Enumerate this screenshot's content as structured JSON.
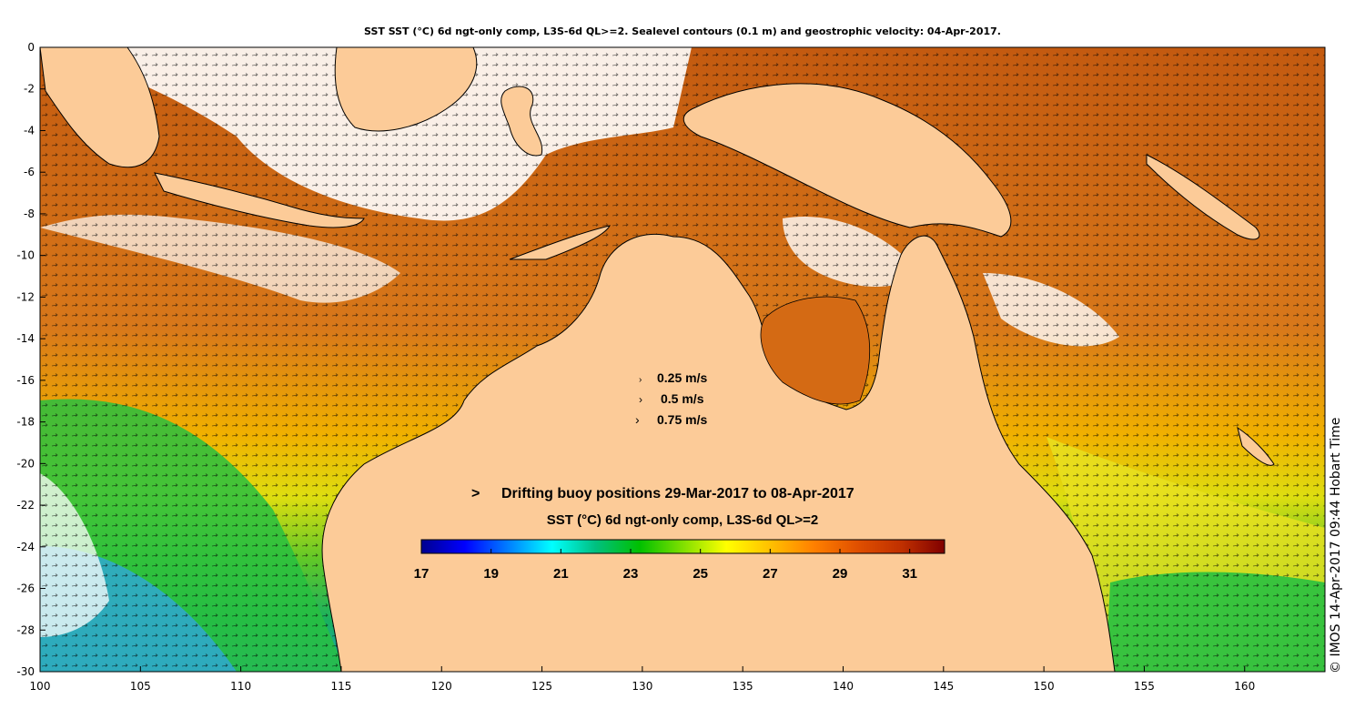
{
  "title": "SST SST (°C) 6d ngt-only comp, L3S-6d QL>=2. Sealevel contours (0.1 m) and geostrophic velocity: 04-Apr-2017.",
  "map": {
    "lon_range": [
      100,
      164
    ],
    "lat_range": [
      -30,
      0
    ],
    "lon_ticks": [
      "100",
      "105",
      "110",
      "115",
      "120",
      "125",
      "130",
      "135",
      "140",
      "145",
      "150",
      "155",
      "160"
    ],
    "lat_ticks": [
      "0",
      "-2",
      "-4",
      "-6",
      "-8",
      "-10",
      "-12",
      "-14",
      "-16",
      "-18",
      "-20",
      "-22",
      "-24",
      "-26",
      "-28",
      "-30"
    ],
    "land_color": "#fccb98",
    "cloud_color": "#ffffff"
  },
  "velocity_legend": {
    "items": [
      {
        "label": "0.25 m/s"
      },
      {
        "label": "0.5 m/s"
      },
      {
        "label": "0.75 m/s"
      }
    ]
  },
  "buoy_legend": {
    "marker": ">",
    "marker_color": "#ff00ff",
    "label": "Drifting buoy positions 29-Mar-2017 to 08-Apr-2017"
  },
  "colorbar": {
    "title": "SST (°C) 6d ngt-only comp, L3S-6d QL>=2",
    "ticks": [
      "17",
      "19",
      "21",
      "23",
      "25",
      "27",
      "29",
      "31"
    ],
    "range": [
      17,
      32
    ],
    "colors": [
      "#00008f",
      "#0000ff",
      "#0080ff",
      "#00ffff",
      "#00c080",
      "#00c000",
      "#80e000",
      "#ffff00",
      "#ffc000",
      "#ff8000",
      "#e05000",
      "#c03000",
      "#800000"
    ]
  },
  "credit": "© IMOS 14-Apr-2017 09:44 Hobart Time"
}
